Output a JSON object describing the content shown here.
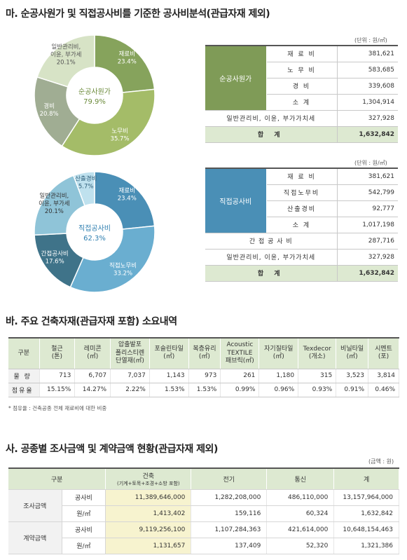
{
  "section_ma": {
    "title": "마. 순공사원가 및 직접공사비를 기준한 공사비분석(관급자재 제외)",
    "chart1": {
      "center_label": "순공사원가",
      "center_value": "79.9%",
      "slices": [
        {
          "name": "재료비",
          "pct": "23.4%",
          "value": 23.4,
          "color": "#86a35c"
        },
        {
          "name": "노무비",
          "pct": "35.7%",
          "value": 35.7,
          "color": "#a4bc68"
        },
        {
          "name": "경비",
          "pct": "20.8%",
          "value": 20.8,
          "color": "#a0ad93"
        },
        {
          "name": "일반관리비, 이윤, 부가세",
          "name_lines": [
            "일반관리비,",
            "이윤, 부가세"
          ],
          "pct": "20.1%",
          "value": 20.1,
          "color": "#d7e3c6"
        }
      ]
    },
    "table1": {
      "unit": "(단위 : 원/㎡)",
      "group_label": "순공사원가",
      "rows": [
        {
          "label": "재 료 비",
          "value": "381,621"
        },
        {
          "label": "노 무 비",
          "value": "583,685"
        },
        {
          "label": "경 비",
          "value": "339,608"
        },
        {
          "label": "소 계",
          "value": "1,304,914"
        }
      ],
      "extra_rows": [
        {
          "label": "일반관리비, 이윤, 부가가치세",
          "value": "327,928"
        }
      ],
      "total_label": "합 계",
      "total_value": "1,632,842"
    },
    "chart2": {
      "center_label": "직접공사비",
      "center_value": "62.3%",
      "slices": [
        {
          "name": "재료비",
          "pct": "23.4%",
          "value": 23.4,
          "color": "#4a8fb6"
        },
        {
          "name": "직접노무비",
          "pct": "33.2%",
          "value": 33.2,
          "color": "#6aaed0"
        },
        {
          "name": "간접공사비",
          "pct": "17.6%",
          "value": 17.6,
          "color": "#3f7389"
        },
        {
          "name": "일반관리비, 이윤, 부가세",
          "name_lines": [
            "일반관리비,",
            "이윤, 부가세"
          ],
          "pct": "20.1%",
          "value": 20.1,
          "color": "#8fc4d8"
        },
        {
          "name": "산출경비",
          "pct": "5.7%",
          "value": 5.7,
          "color": "#bfe1ee"
        }
      ]
    },
    "table2": {
      "unit": "(단위 : 원/㎡)",
      "group_label": "직접공사비",
      "rows": [
        {
          "label": "재 료 비",
          "value": "381,621"
        },
        {
          "label": "직접노무비",
          "value": "542,799"
        },
        {
          "label": "산출경비",
          "value": "92,777"
        },
        {
          "label": "소 계",
          "value": "1,017,198"
        }
      ],
      "extra_rows": [
        {
          "label": "간 접 공 사 비",
          "value": "287,716"
        },
        {
          "label": "일반관리비, 이윤, 부가가치세",
          "value": "327,928"
        }
      ],
      "total_label": "합 계",
      "total_value": "1,632,842"
    }
  },
  "section_ba": {
    "title": "바. 주요 건축자재(관급자재 포함) 소요내역",
    "header_first": "구분",
    "columns": [
      {
        "lines": [
          "철근",
          "(톤)"
        ]
      },
      {
        "lines": [
          "레미콘",
          "(㎥)"
        ]
      },
      {
        "lines": [
          "압출발포",
          "폴리스티렌",
          "단열재(㎥)"
        ]
      },
      {
        "lines": [
          "포슬린타일",
          "(㎡)"
        ]
      },
      {
        "lines": [
          "복층유리",
          "(㎡)"
        ]
      },
      {
        "lines": [
          "Acoustic",
          "TEXTILE",
          "패브릭(㎡)"
        ]
      },
      {
        "lines": [
          "자기질타일",
          "(㎡)"
        ]
      },
      {
        "lines": [
          "Texdecor",
          "(개소)"
        ]
      },
      {
        "lines": [
          "비닐타일",
          "(㎡)"
        ]
      },
      {
        "lines": [
          "시멘트",
          "(포)"
        ]
      }
    ],
    "rows": [
      {
        "label": "물 량",
        "values": [
          "713",
          "6,707",
          "7,037",
          "1,143",
          "973",
          "261",
          "1,180",
          "315",
          "3,523",
          "3,814"
        ]
      },
      {
        "label": "점유율",
        "values": [
          "15.15%",
          "14.27%",
          "2.22%",
          "1.53%",
          "1.53%",
          "0.99%",
          "0.96%",
          "0.93%",
          "0.91%",
          "0.46%"
        ]
      }
    ],
    "note": "* 점유율 : 건축공종 전체 재료비에 대한 비중"
  },
  "section_sa": {
    "title": "사. 공종별 조사금액 및 계약금액 현황(관급자재 제외)",
    "unit": "(금액 : 원)",
    "header": {
      "col0": "구분",
      "col1": "건축",
      "col1_sub": "(기계+토목+조경+소방 포함)",
      "col2": "전기",
      "col3": "통신",
      "col4": "계"
    },
    "groups": [
      {
        "label": "조사금액",
        "rows": [
          {
            "sub": "공사비",
            "values": [
              "11,389,646,000",
              "1,282,208,000",
              "486,110,000",
              "13,157,964,000"
            ]
          },
          {
            "sub": "원/㎡",
            "values": [
              "1,413,402",
              "159,116",
              "60,324",
              "1,632,842"
            ]
          }
        ]
      },
      {
        "label": "계약금액",
        "rows": [
          {
            "sub": "공사비",
            "values": [
              "9,119,256,100",
              "1,107,284,363",
              "421,614,000",
              "10,648,154,463"
            ]
          },
          {
            "sub": "원/㎡",
            "values": [
              "1,131,657",
              "137,409",
              "52,320",
              "1,321,386"
            ]
          }
        ]
      }
    ]
  }
}
